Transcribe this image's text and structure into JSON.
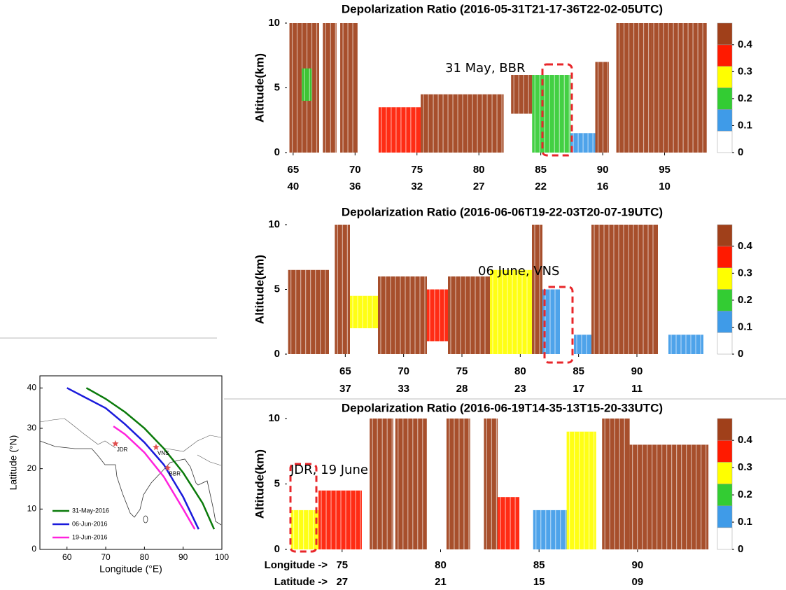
{
  "chart_data": [
    {
      "type": "curtain",
      "title": "Depolarization Ratio (2016-05-31T21-17-36T22-02-05UTC)",
      "ylabel": "Altitude(km)",
      "xlim": [
        64.5,
        98.7
      ],
      "ylim": [
        0,
        10
      ],
      "xticks": [
        65,
        70,
        75,
        80,
        85,
        90,
        95
      ],
      "yticks": [
        0,
        5,
        10
      ],
      "x2ticks": [
        {
          "value": 65,
          "label": "40"
        },
        {
          "value": 70,
          "label": "36"
        },
        {
          "value": 75,
          "label": "32"
        },
        {
          "value": 80,
          "label": "27"
        },
        {
          "value": 85,
          "label": "22"
        },
        {
          "value": 90,
          "label": "16"
        },
        {
          "value": 95,
          "label": "10"
        }
      ],
      "annotation": "31 May, BBR",
      "clim": [
        0,
        0.48
      ],
      "colors": [
        "#ffffff",
        "#3f9be8",
        "#33cc33",
        "#ffff00",
        "#ff1a00",
        "#a0401a"
      ],
      "cticks": [
        0,
        0.1,
        0.2,
        0.3,
        0.4
      ],
      "layers": [
        {
          "lon": [
            64.7,
            67.1
          ],
          "alt": [
            0,
            10
          ],
          "value": 0.45
        },
        {
          "lon": [
            65.7,
            66.5
          ],
          "alt": [
            4,
            6.5
          ],
          "value": 0.2
        },
        {
          "lon": [
            67.4,
            68.5
          ],
          "alt": [
            0,
            10
          ],
          "value": 0.45
        },
        {
          "lon": [
            68.8,
            70.2
          ],
          "alt": [
            0,
            10
          ],
          "value": 0.4
        },
        {
          "lon": [
            71.9,
            75.3
          ],
          "alt": [
            0,
            3.5
          ],
          "value": 0.35
        },
        {
          "lon": [
            75.3,
            82
          ],
          "alt": [
            0,
            4.5
          ],
          "value": 0.4
        },
        {
          "lon": [
            82.6,
            84.3
          ],
          "alt": [
            3,
            6
          ],
          "value": 0.45
        },
        {
          "lon": [
            84.3,
            87.4
          ],
          "alt": [
            0,
            6
          ],
          "value": 0.2
        },
        {
          "lon": [
            87.4,
            89.4
          ],
          "alt": [
            0,
            1.5
          ],
          "value": 0.1
        },
        {
          "lon": [
            89.4,
            90.5
          ],
          "alt": [
            0,
            7
          ],
          "value": 0.4
        },
        {
          "lon": [
            91.1,
            93.9
          ],
          "alt": [
            0,
            10
          ],
          "value": 0.45
        },
        {
          "lon": [
            93.9,
            98.4
          ],
          "alt": [
            0,
            10
          ],
          "value": 0.4
        }
      ]
    },
    {
      "type": "curtain",
      "title": "Depolarization Ratio (2016-06-06T19-22-03T20-07-19UTC)",
      "ylabel": "Altitude(km)",
      "xlim": [
        60,
        96.3
      ],
      "ylim": [
        0,
        10
      ],
      "xticks": [
        65,
        70,
        75,
        80,
        85,
        90
      ],
      "yticks": [
        0,
        5,
        10
      ],
      "x2ticks": [
        {
          "value": 65,
          "label": "37"
        },
        {
          "value": 70,
          "label": "33"
        },
        {
          "value": 75,
          "label": "28"
        },
        {
          "value": 80,
          "label": "23"
        },
        {
          "value": 85,
          "label": "17"
        },
        {
          "value": 90,
          "label": "11"
        }
      ],
      "annotation": "06 June, VNS",
      "clim": [
        0,
        0.48
      ],
      "colors": [
        "#ffffff",
        "#3f9be8",
        "#33cc33",
        "#ffff00",
        "#ff1a00",
        "#a0401a"
      ],
      "cticks": [
        0,
        0.1,
        0.2,
        0.3,
        0.4
      ],
      "layers": [
        {
          "lon": [
            60.1,
            63.6
          ],
          "alt": [
            0,
            6.5
          ],
          "value": 0.4
        },
        {
          "lon": [
            64.1,
            65.4
          ],
          "alt": [
            0,
            10
          ],
          "value": 0.45
        },
        {
          "lon": [
            65.4,
            67.8
          ],
          "alt": [
            2,
            4.5
          ],
          "value": 0.3
        },
        {
          "lon": [
            67.8,
            72
          ],
          "alt": [
            0,
            6
          ],
          "value": 0.4
        },
        {
          "lon": [
            72,
            73.8
          ],
          "alt": [
            1,
            5
          ],
          "value": 0.35
        },
        {
          "lon": [
            73.8,
            77.4
          ],
          "alt": [
            0,
            6
          ],
          "value": 0.4
        },
        {
          "lon": [
            77.4,
            81
          ],
          "alt": [
            0,
            6.5
          ],
          "value": 0.3
        },
        {
          "lon": [
            81,
            81.9
          ],
          "alt": [
            0,
            10
          ],
          "value": 0.45
        },
        {
          "lon": [
            81.9,
            83.4
          ],
          "alt": [
            0,
            5
          ],
          "value": 0.1
        },
        {
          "lon": [
            84.6,
            86.1
          ],
          "alt": [
            0,
            1.5
          ],
          "value": 0.1
        },
        {
          "lon": [
            86.1,
            91.8
          ],
          "alt": [
            0,
            10
          ],
          "value": 0.4
        },
        {
          "lon": [
            92.7,
            95.7
          ],
          "alt": [
            0,
            1.5
          ],
          "value": 0.1
        }
      ]
    },
    {
      "type": "curtain",
      "title": "Depolarization Ratio (2016-06-19T14-35-13T15-20-33UTC)",
      "ylabel": "Altitude(km)",
      "xlabel": "Longitude ->",
      "x2label": "Latitude ->",
      "xlim": [
        72.2,
        93.7
      ],
      "ylim": [
        0,
        10
      ],
      "xticks": [
        75,
        80,
        85,
        90
      ],
      "yticks": [
        0,
        5,
        10
      ],
      "x2ticks": [
        {
          "value": 75,
          "label": "27"
        },
        {
          "value": 80,
          "label": "21"
        },
        {
          "value": 85,
          "label": "15"
        },
        {
          "value": 90,
          "label": "09"
        }
      ],
      "annotation": "JDR, 19 June",
      "clim": [
        0,
        0.48
      ],
      "colors": [
        "#ffffff",
        "#3f9be8",
        "#33cc33",
        "#ffff00",
        "#ff1a00",
        "#a0401a"
      ],
      "cticks": [
        0,
        0.1,
        0.2,
        0.3,
        0.4
      ],
      "layers": [
        {
          "lon": [
            72.4,
            73.8
          ],
          "alt": [
            0,
            3
          ],
          "value": 0.3
        },
        {
          "lon": [
            73.8,
            76
          ],
          "alt": [
            0,
            4.5
          ],
          "value": 0.35
        },
        {
          "lon": [
            76.4,
            77.6
          ],
          "alt": [
            0,
            10
          ],
          "value": 0.4
        },
        {
          "lon": [
            77.7,
            79.3
          ],
          "alt": [
            0,
            10
          ],
          "value": 0.4
        },
        {
          "lon": [
            80.3,
            81.5
          ],
          "alt": [
            0,
            10
          ],
          "value": 0.45
        },
        {
          "lon": [
            82.2,
            82.9
          ],
          "alt": [
            0,
            10
          ],
          "value": 0.4
        },
        {
          "lon": [
            82.9,
            84
          ],
          "alt": [
            0,
            4
          ],
          "value": 0.35
        },
        {
          "lon": [
            84.7,
            86.4
          ],
          "alt": [
            0,
            3
          ],
          "value": 0.1
        },
        {
          "lon": [
            86.4,
            87.9
          ],
          "alt": [
            0,
            9
          ],
          "value": 0.3
        },
        {
          "lon": [
            88.2,
            89.6
          ],
          "alt": [
            0,
            10
          ],
          "value": 0.4
        },
        {
          "lon": [
            89.6,
            93.6
          ],
          "alt": [
            0,
            8
          ],
          "value": 0.4
        }
      ]
    },
    {
      "type": "line",
      "xlabel": "Longitude (°E)",
      "ylabel": "Latitude (°N)",
      "xlim": [
        53,
        100
      ],
      "ylim": [
        0,
        43
      ],
      "xticks": [
        60,
        70,
        80,
        90,
        100
      ],
      "yticks": [
        0,
        10,
        20,
        30,
        40
      ],
      "legend": "lower left",
      "series": [
        {
          "name": "31-May-2016",
          "color": "#0a7a0a",
          "x": [
            65,
            70,
            75,
            80,
            85,
            90,
            95,
            98
          ],
          "values": [
            40,
            37.3,
            34,
            30,
            25,
            19,
            11.5,
            5
          ]
        },
        {
          "name": "06-Jun-2016",
          "color": "#1a1adb",
          "x": [
            60,
            65,
            70,
            75,
            80,
            85,
            90,
            94
          ],
          "values": [
            40,
            37.5,
            35,
            31,
            26.5,
            21,
            13,
            5
          ]
        },
        {
          "name": "19-Jun-2016",
          "color": "#ff22dd",
          "x": [
            72,
            75,
            80,
            85,
            90,
            93
          ],
          "values": [
            30.5,
            28.5,
            24,
            18,
            10,
            5
          ]
        }
      ],
      "points": [
        {
          "label": "JDR",
          "x": 72.5,
          "y": 26.2
        },
        {
          "label": "VNS",
          "x": 83,
          "y": 25.3
        },
        {
          "label": "BBR",
          "x": 86,
          "y": 20.2
        }
      ],
      "point_color": "#e05050"
    }
  ]
}
